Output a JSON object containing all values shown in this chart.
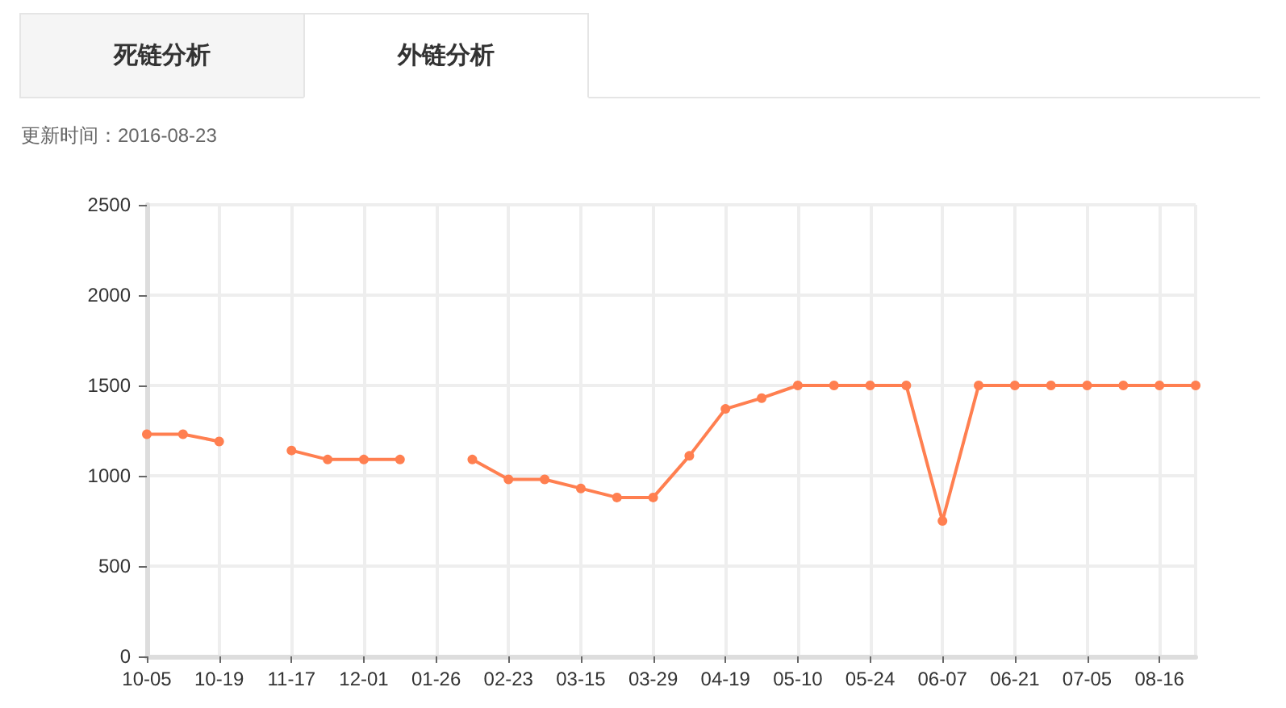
{
  "chart_data": {
    "type": "line",
    "subtitle": "更新时间：2016-08-23",
    "annotations": [
      "死链分析",
      "外链分析"
    ],
    "categories": [
      "10-05",
      null,
      "10-19",
      null,
      "11-17",
      null,
      "12-01",
      null,
      "01-26",
      null,
      "02-23",
      null,
      "03-15",
      null,
      "03-29",
      null,
      "04-19",
      null,
      "05-10",
      null,
      "05-24",
      null,
      "06-07",
      null,
      "06-21",
      null,
      "07-05",
      null,
      "08-16",
      null
    ],
    "series": [
      {
        "color": "#ff7f50",
        "values": [
          1230,
          1230,
          1190,
          null,
          1140,
          1090,
          1090,
          1090,
          null,
          1090,
          980,
          980,
          930,
          880,
          880,
          1110,
          1370,
          1430,
          1500,
          1500,
          1500,
          1500,
          750,
          1500,
          1500,
          1500,
          1500,
          1500,
          1500,
          1500
        ]
      }
    ],
    "ylim": [
      0,
      2500
    ],
    "yticks": [
      0,
      500,
      1000,
      1500,
      2000,
      2500
    ],
    "grid": true,
    "marker": "circle",
    "line_style": "solid"
  }
}
